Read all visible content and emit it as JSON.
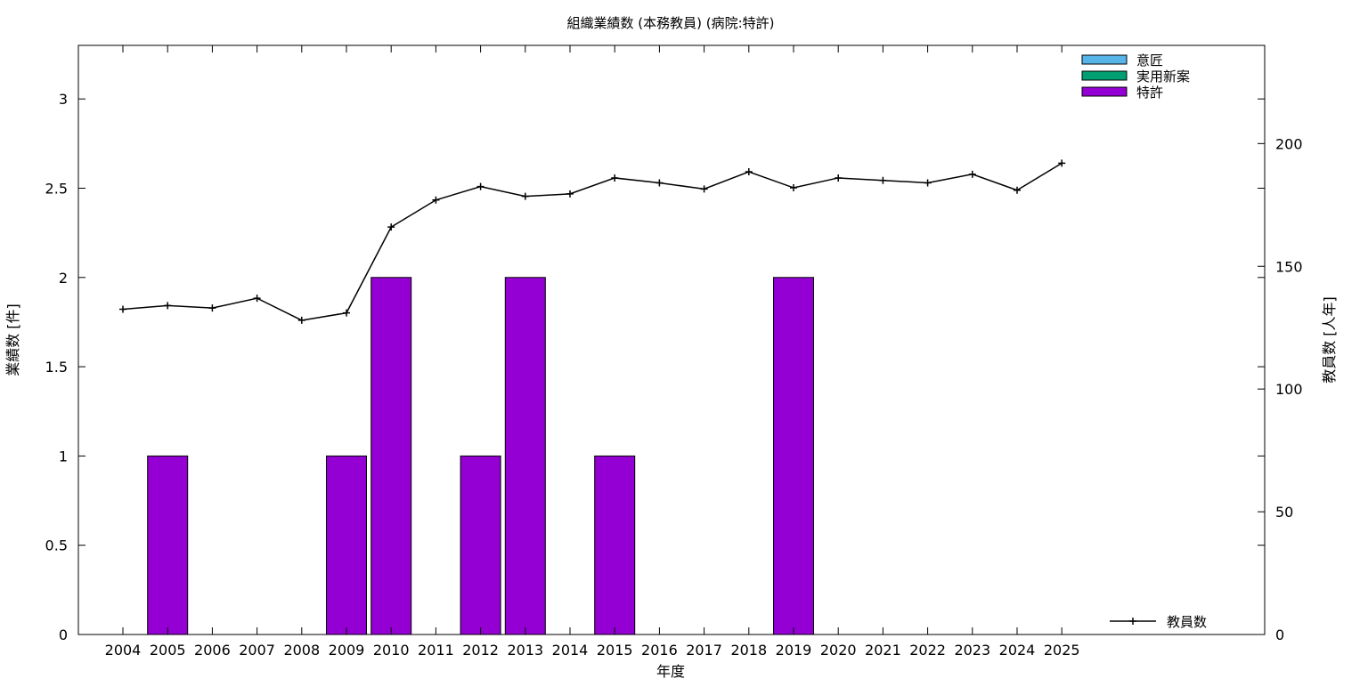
{
  "chart_data": {
    "type": "bar",
    "title": "組織業績数 (本務教員) (病院:特許)",
    "xlabel": "年度",
    "ylabel": "業績数 [件]",
    "y2label": "教員数 [人年]",
    "categories": [
      "2004",
      "2005",
      "2006",
      "2007",
      "2008",
      "2009",
      "2010",
      "2011",
      "2012",
      "2013",
      "2014",
      "2015",
      "2016",
      "2017",
      "2018",
      "2019",
      "2020",
      "2021",
      "2022",
      "2023",
      "2024",
      "2025"
    ],
    "ylim": [
      0,
      3.3
    ],
    "yticks": [
      "0",
      "0.5",
      "1",
      "1.5",
      "2",
      "2.5",
      "3"
    ],
    "y2lim": [
      0,
      240
    ],
    "y2ticks": [
      "0",
      "50",
      "100",
      "150",
      "200"
    ],
    "grid": false,
    "legend_position": "top-right",
    "series": [
      {
        "name": "意匠",
        "color": "#56b4e9",
        "values": [
          0,
          0,
          0,
          0,
          0,
          0,
          0,
          0,
          0,
          0,
          0,
          0,
          0,
          0,
          0,
          0,
          0,
          0,
          0,
          0,
          0,
          0
        ]
      },
      {
        "name": "実用新案",
        "color": "#009e73",
        "values": [
          0,
          0,
          0,
          0,
          0,
          0,
          0,
          0,
          0,
          0,
          0,
          0,
          0,
          0,
          0,
          0,
          0,
          0,
          0,
          0,
          0,
          0
        ]
      },
      {
        "name": "特許",
        "color": "#9400d3",
        "values": [
          0,
          1,
          0,
          0,
          0,
          1,
          2,
          0,
          1,
          2,
          0,
          1,
          0,
          0,
          0,
          2,
          0,
          0,
          0,
          0,
          0,
          0
        ]
      }
    ],
    "line_series": {
      "name": "教員数",
      "color": "#000000",
      "axis": "right",
      "values": [
        132.5,
        134,
        133,
        137,
        128,
        131,
        166,
        177,
        182.5,
        178.5,
        179.5,
        186,
        184,
        181.5,
        188.5,
        182,
        186,
        185,
        184,
        187.5,
        181,
        192
      ]
    }
  }
}
